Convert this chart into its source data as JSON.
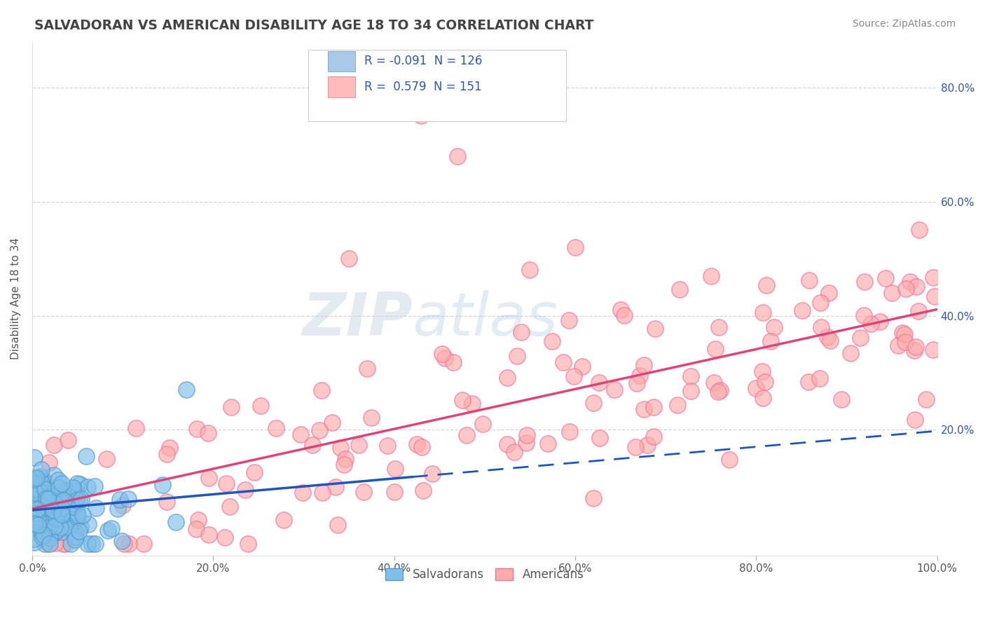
{
  "title": "SALVADORAN VS AMERICAN DISABILITY AGE 18 TO 34 CORRELATION CHART",
  "source": "Source: ZipAtlas.com",
  "ylabel": "Disability Age 18 to 34",
  "xlim": [
    0.0,
    1.0
  ],
  "ylim": [
    -0.02,
    0.88
  ],
  "x_ticks": [
    0.0,
    0.2,
    0.4,
    0.6,
    0.8,
    1.0
  ],
  "x_tick_labels": [
    "0.0%",
    "20.0%",
    "40.0%",
    "60.0%",
    "80.0%",
    "100.0%"
  ],
  "y_ticks": [
    0.0,
    0.2,
    0.4,
    0.6,
    0.8
  ],
  "y_tick_labels": [
    "",
    "20.0%",
    "40.0%",
    "60.0%",
    "80.0%"
  ],
  "salvadoran_color": "#7fbfea",
  "salvadoran_edge": "#5599cc",
  "american_color": "#ffaaaa",
  "american_edge": "#ee7799",
  "salv_line_color": "#2255bb",
  "amer_line_color": "#dd4477",
  "watermark_zip_color": "#c0ccd8",
  "watermark_atlas_color": "#b8ccdd",
  "background_color": "#ffffff",
  "grid_color": "#cccccc",
  "title_color": "#444444",
  "tick_color": "#3355aa",
  "legend_r_color": "#3355aa",
  "source_color": "#888888"
}
